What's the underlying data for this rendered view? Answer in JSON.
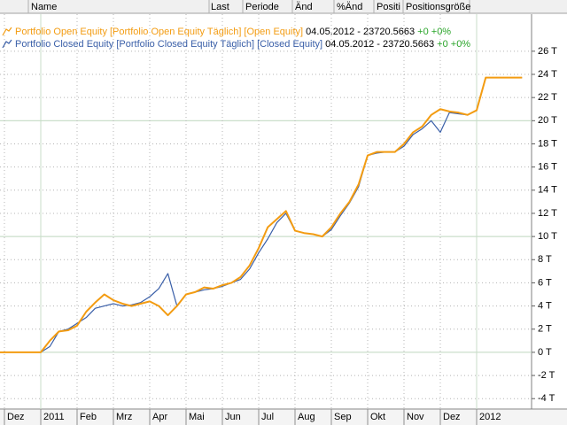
{
  "header": [
    "Name",
    "Last",
    "Periode",
    "Änd",
    "%Änd",
    "Positi",
    "Positionsgröße"
  ],
  "chart_data": {
    "type": "line",
    "categories": [
      "Dez",
      null,
      null,
      null,
      "2011",
      null,
      null,
      null,
      "Feb",
      null,
      null,
      null,
      "Mrz",
      null,
      null,
      null,
      "Apr",
      null,
      null,
      null,
      "Mai",
      null,
      null,
      null,
      "Jun",
      null,
      null,
      null,
      "Jul",
      null,
      null,
      null,
      "Aug",
      null,
      null,
      null,
      "Sep",
      null,
      null,
      null,
      "Okt",
      null,
      null,
      null,
      "Nov",
      null,
      null,
      null,
      "Dez",
      null,
      null,
      null,
      "2012",
      null,
      null,
      null,
      null,
      null
    ],
    "series": [
      {
        "name": "Portfolio Open Equity [Portfolio Open Equity  Täglich] [Open Equity]",
        "info": "04.05.2012 - 23720.5663",
        "change": "+0 +0%",
        "color": "#f39c12",
        "values": [
          0,
          0,
          0,
          0,
          0,
          1000,
          1800,
          1900,
          2300,
          3500,
          4300,
          5000,
          4500,
          4200,
          4000,
          4200,
          4400,
          4000,
          3200,
          4000,
          5000,
          5200,
          5600,
          5500,
          5800,
          6000,
          6500,
          7500,
          9000,
          10800,
          11500,
          12200,
          10500,
          10300,
          10200,
          10000,
          10800,
          12000,
          13000,
          14500,
          17000,
          17300,
          17300,
          17300,
          18000,
          19000,
          19500,
          20500,
          21000,
          20800,
          20700,
          20500,
          20900,
          23720,
          23720,
          23720,
          23720,
          23720
        ]
      },
      {
        "name": "Portfolio Closed Equity [Portfolio Closed Equity  Täglich] [Closed Equity]",
        "info": "04.05.2012 - 23720.5663",
        "change": "+0 +0%",
        "color": "#3a5fa8",
        "values": [
          0,
          0,
          0,
          0,
          0,
          500,
          1800,
          2000,
          2500,
          3000,
          3800,
          4000,
          4200,
          4000,
          4100,
          4300,
          4800,
          5500,
          6800,
          4000,
          5000,
          5200,
          5400,
          5500,
          5700,
          6000,
          6300,
          7200,
          8600,
          9800,
          11200,
          12000,
          10500,
          10300,
          10200,
          10000,
          10600,
          11800,
          12900,
          14300,
          17000,
          17200,
          17300,
          17300,
          17800,
          18800,
          19300,
          20000,
          19000,
          20700,
          20600,
          20500,
          20900,
          23720,
          23720,
          23720,
          23720,
          23720
        ]
      }
    ],
    "ylim": [
      -4900,
      29200
    ],
    "yticks": [
      {
        "value": -4000,
        "label": "-4 T"
      },
      {
        "value": -2000,
        "label": "-2 T"
      },
      {
        "value": 0,
        "label": "0 T"
      },
      {
        "value": 2000,
        "label": "2 T"
      },
      {
        "value": 4000,
        "label": "4 T"
      },
      {
        "value": 6000,
        "label": "6 T"
      },
      {
        "value": 8000,
        "label": "8 T"
      },
      {
        "value": 10000,
        "label": "10 T"
      },
      {
        "value": 12000,
        "label": "12 T"
      },
      {
        "value": 14000,
        "label": "14 T"
      },
      {
        "value": 16000,
        "label": "16 T"
      },
      {
        "value": 18000,
        "label": "18 T"
      },
      {
        "value": 20000,
        "label": "20 T"
      },
      {
        "value": 22000,
        "label": "22 T"
      },
      {
        "value": 24000,
        "label": "24 T"
      },
      {
        "value": 26000,
        "label": "26 T"
      }
    ],
    "major_y": [
      0,
      10000,
      20000
    ],
    "grid": true
  }
}
